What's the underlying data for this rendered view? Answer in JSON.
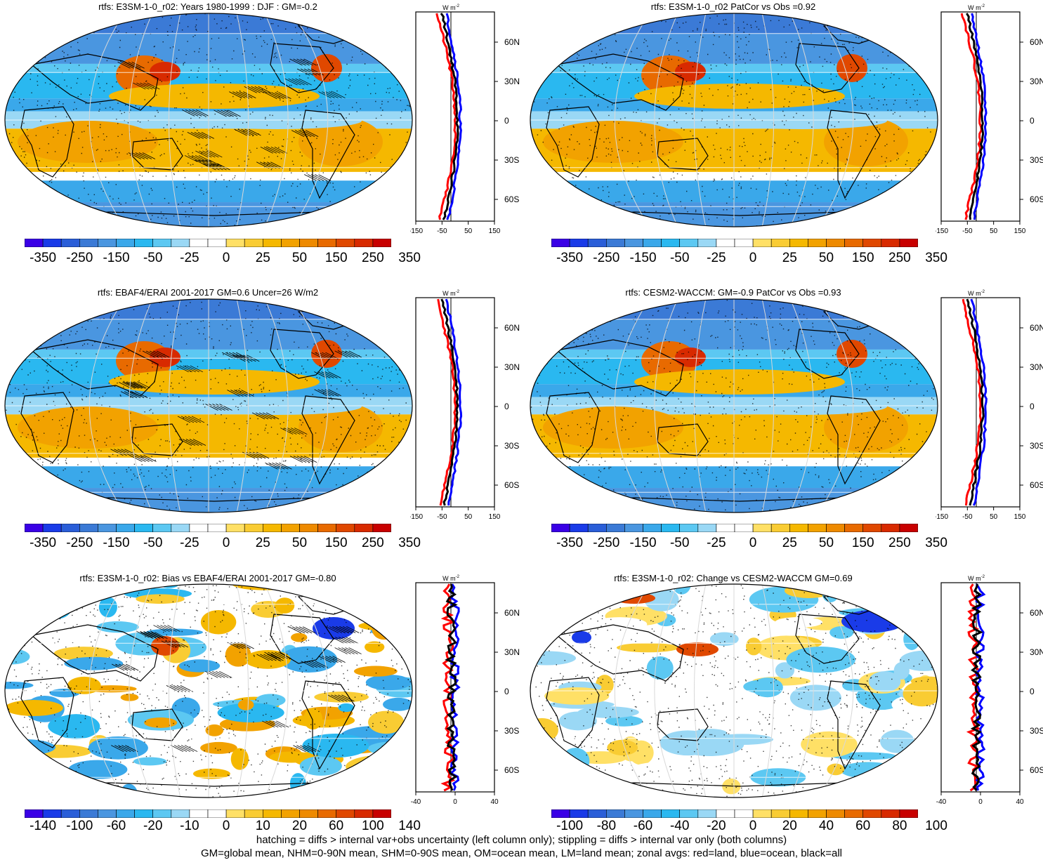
{
  "panels": [
    {
      "title": "rtfs: E3SM-1-0_r02: Years 1980-1999 : DJF : GM=-0.2",
      "colorbar": "main",
      "profile": "wide",
      "variant": 0
    },
    {
      "title": "rtfs: E3SM-1-0_r02 PatCor vs Obs =0.92",
      "colorbar": "main",
      "profile": "wide",
      "variant": 1
    },
    {
      "title": "rtfs: EBAF4/ERAI 2001-2017 GM=0.6 Uncer=26 W/m2",
      "colorbar": "main",
      "profile": "wide",
      "variant": 2
    },
    {
      "title": "rtfs: CESM2-WACCM: GM=-0.9 PatCor vs Obs =0.93",
      "colorbar": "main",
      "profile": "wide",
      "variant": 3
    },
    {
      "title": "rtfs: E3SM-1-0_r02: Bias vs EBAF4/ERAI 2001-2017 GM=-0.80",
      "colorbar": "bias",
      "profile": "narrow",
      "variant": 4
    },
    {
      "title": "rtfs: E3SM-1-0_r02: Change vs CESM2-WACCM GM=0.69",
      "colorbar": "change",
      "profile": "narrow",
      "variant": 5
    }
  ],
  "colorbars": {
    "main": {
      "labels": [
        "-350",
        "-250",
        "-150",
        "-50",
        "-25",
        "0",
        "25",
        "50",
        "150",
        "250",
        "350"
      ]
    },
    "bias": {
      "labels": [
        "-140",
        "-100",
        "-60",
        "-20",
        "-10",
        "0",
        "10",
        "20",
        "60",
        "100",
        "140"
      ]
    },
    "change": {
      "labels": [
        "-100",
        "-80",
        "-60",
        "-40",
        "-20",
        "0",
        "20",
        "40",
        "60",
        "80",
        "100"
      ]
    }
  },
  "colors": {
    "palette": [
      "#3a00e6",
      "#1a3be8",
      "#2a5ed8",
      "#3b7ad6",
      "#4a96e0",
      "#3aa8ea",
      "#2ab8f0",
      "#5cc8f2",
      "#9ad8f5",
      "#ffffff",
      "#ffffff",
      "#ffe066",
      "#f9cc33",
      "#f5b800",
      "#f2a200",
      "#ee8a00",
      "#e86a00",
      "#e04800",
      "#d82a00",
      "#c80000"
    ],
    "land_profile": "#ff0000",
    "ocean_profile": "#0000ff",
    "all_profile": "#000000"
  },
  "profile_axis": {
    "unit": "W m",
    "unit_sup": "-2",
    "lat_labels": [
      "60N",
      "30N",
      "0",
      "30S",
      "60S"
    ],
    "x_labels_wide": [
      "-150",
      "-50",
      "50",
      "150"
    ],
    "x_labels_narrow": [
      "-40",
      "0",
      "40"
    ]
  },
  "footer": {
    "line1": "hatching = diffs > internal var+obs uncertainty (left column only); stippling = diffs > internal var only (both columns)",
    "line2": "GM=global mean, NHM=0-90N mean, SHM=0-90S mean, OM=ocean mean, LM=land mean; zonal avgs: red=land, blue=ocean, black=all"
  }
}
